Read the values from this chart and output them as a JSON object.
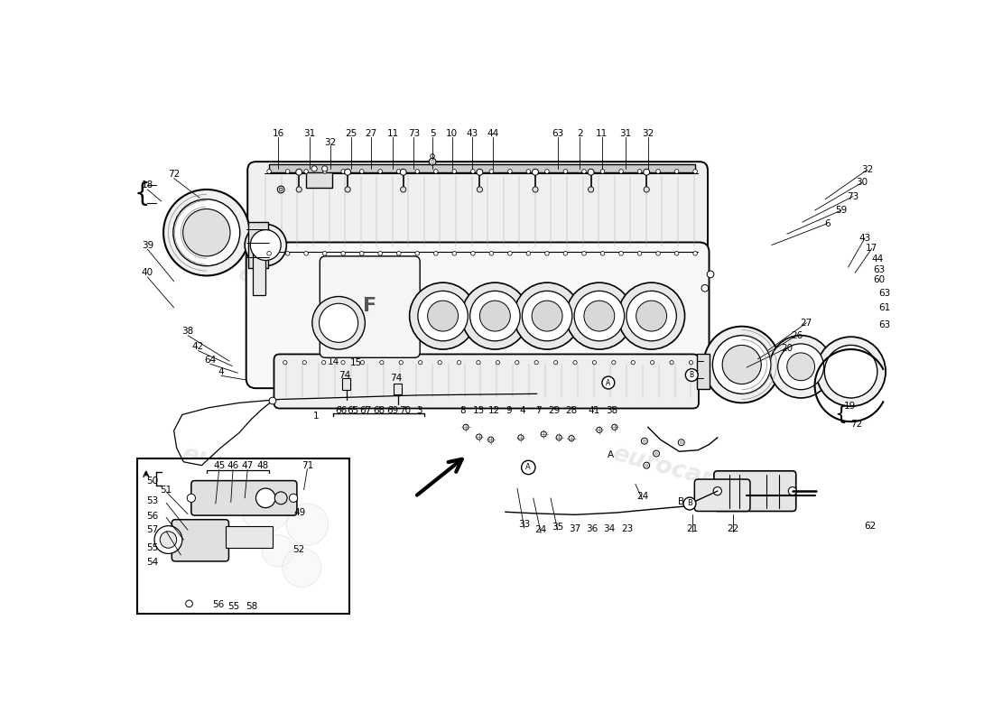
{
  "bg": "#ffffff",
  "fig_w": 11.0,
  "fig_h": 8.0,
  "dpi": 100,
  "wm": [
    [
      280,
      300,
      -15,
      "eurocarparts"
    ],
    [
      580,
      240,
      -15,
      "eurocarparts"
    ],
    [
      820,
      560,
      -15,
      "eurocarparts"
    ],
    [
      200,
      560,
      -15,
      "eurocarparts"
    ]
  ],
  "labels_top": [
    [
      218,
      68,
      "16"
    ],
    [
      263,
      68,
      "31"
    ],
    [
      293,
      80,
      "32"
    ],
    [
      323,
      68,
      "25"
    ],
    [
      352,
      68,
      "27"
    ],
    [
      383,
      68,
      "11"
    ],
    [
      413,
      68,
      "73"
    ],
    [
      440,
      68,
      "5"
    ],
    [
      468,
      68,
      "10"
    ],
    [
      497,
      68,
      "43"
    ],
    [
      527,
      68,
      "44"
    ],
    [
      620,
      68,
      "63"
    ],
    [
      652,
      68,
      "2"
    ],
    [
      684,
      68,
      "11"
    ],
    [
      718,
      68,
      "31"
    ],
    [
      750,
      68,
      "32"
    ]
  ],
  "labels_right_col": [
    [
      1065,
      120,
      "32"
    ],
    [
      1058,
      138,
      "30"
    ],
    [
      1045,
      158,
      "73"
    ],
    [
      1028,
      178,
      "59"
    ],
    [
      1008,
      197,
      "6"
    ],
    [
      1062,
      218,
      "43"
    ],
    [
      1072,
      233,
      "17"
    ],
    [
      1080,
      248,
      "44"
    ],
    [
      1082,
      263,
      "63"
    ],
    [
      1082,
      278,
      "60"
    ],
    [
      1090,
      298,
      "63"
    ],
    [
      1090,
      318,
      "61"
    ],
    [
      1090,
      343,
      "63"
    ],
    [
      978,
      340,
      "27"
    ],
    [
      964,
      358,
      "26"
    ],
    [
      950,
      376,
      "20"
    ]
  ],
  "labels_left": [
    [
      30,
      142,
      "18"
    ],
    [
      68,
      126,
      "72"
    ],
    [
      30,
      228,
      "39"
    ],
    [
      30,
      268,
      "40"
    ],
    [
      88,
      352,
      "38"
    ],
    [
      103,
      374,
      "42"
    ],
    [
      120,
      393,
      "64"
    ],
    [
      136,
      410,
      "4"
    ]
  ],
  "labels_center": [
    [
      298,
      396,
      "14"
    ],
    [
      330,
      398,
      "15"
    ],
    [
      313,
      415,
      "74"
    ],
    [
      388,
      420,
      "74"
    ]
  ],
  "labels_bottom_row": [
    [
      308,
      466,
      "66"
    ],
    [
      325,
      466,
      "65"
    ],
    [
      344,
      466,
      "67"
    ],
    [
      363,
      466,
      "68"
    ],
    [
      382,
      466,
      "69"
    ],
    [
      401,
      466,
      "70"
    ],
    [
      421,
      466,
      "3"
    ],
    [
      272,
      474,
      "1"
    ],
    [
      483,
      466,
      "8"
    ],
    [
      507,
      466,
      "13"
    ],
    [
      529,
      466,
      "12"
    ],
    [
      550,
      466,
      "9"
    ],
    [
      570,
      466,
      "4"
    ],
    [
      592,
      466,
      "7"
    ],
    [
      615,
      466,
      "29"
    ],
    [
      640,
      466,
      "28"
    ],
    [
      673,
      466,
      "41"
    ],
    [
      698,
      466,
      "38"
    ]
  ],
  "labels_br": [
    [
      572,
      630,
      "33"
    ],
    [
      596,
      638,
      "24"
    ],
    [
      620,
      634,
      "35"
    ],
    [
      645,
      636,
      "37"
    ],
    [
      670,
      636,
      "36"
    ],
    [
      694,
      636,
      "34"
    ],
    [
      720,
      636,
      "23"
    ],
    [
      814,
      636,
      "21"
    ],
    [
      872,
      636,
      "22"
    ],
    [
      1070,
      633,
      "62"
    ],
    [
      742,
      590,
      "24"
    ],
    [
      798,
      598,
      "B"
    ],
    [
      696,
      530,
      "A"
    ],
    [
      1040,
      460,
      "19"
    ],
    [
      1050,
      486,
      "72"
    ]
  ],
  "labels_inset": [
    [
      133,
      546,
      "45"
    ],
    [
      153,
      546,
      "46"
    ],
    [
      174,
      546,
      "47"
    ],
    [
      196,
      546,
      "48"
    ],
    [
      260,
      545,
      "71"
    ],
    [
      37,
      568,
      "50"
    ],
    [
      57,
      580,
      "51"
    ],
    [
      37,
      596,
      "53"
    ],
    [
      37,
      618,
      "56"
    ],
    [
      37,
      638,
      "57"
    ],
    [
      37,
      663,
      "55"
    ],
    [
      37,
      685,
      "54"
    ],
    [
      132,
      746,
      "56"
    ],
    [
      154,
      748,
      "55"
    ],
    [
      180,
      748,
      "58"
    ],
    [
      249,
      613,
      "49"
    ],
    [
      247,
      666,
      "52"
    ]
  ]
}
